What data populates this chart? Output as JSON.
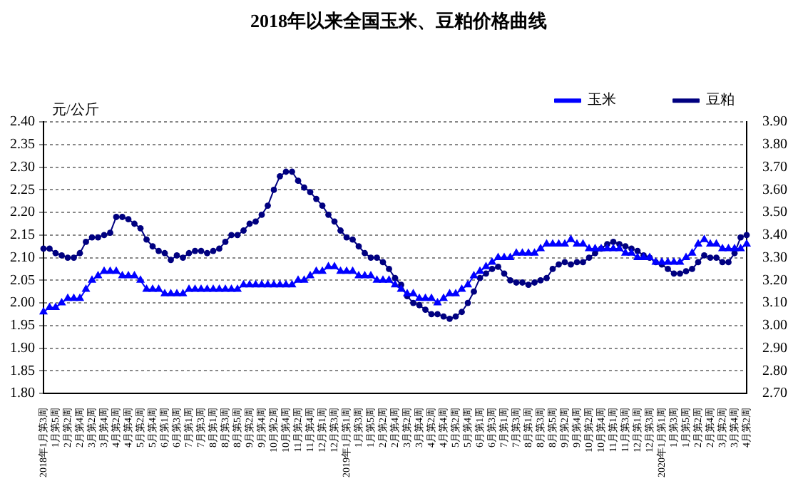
{
  "chart_data": {
    "type": "line",
    "title": "2018年以来全国玉米、豆粕价格曲线",
    "ylabel": "元/公斤",
    "categories": [
      "2018年1月第3周",
      null,
      "1月第5周",
      null,
      "2月第2周",
      null,
      "2月第4周",
      null,
      "3月第2周",
      null,
      "3月第4周",
      null,
      "4月第2周",
      null,
      "4月第4周",
      null,
      "5月第2周",
      null,
      "5月第4周",
      null,
      "6月第1周",
      null,
      "6月第3周",
      null,
      "7月第1周",
      null,
      "7月第3周",
      null,
      "8月第1周",
      null,
      "8月第3周",
      null,
      "8月第5周",
      null,
      "9月第2周",
      null,
      "9月第4周",
      null,
      "10月第2周",
      null,
      "10月第4周",
      null,
      "11月第2周",
      null,
      "11月第4周",
      null,
      "12月第1周",
      null,
      "12月第3周",
      null,
      "2019年1月第1周",
      null,
      "1月第3周",
      null,
      "1月第5周",
      null,
      "2月第2周",
      null,
      "2月第4周",
      null,
      "3月第2周",
      null,
      "3月第4周",
      null,
      "4月第2周",
      null,
      "4月第4周",
      null,
      "5月第2周",
      null,
      "5月第4周",
      null,
      "6月第1周",
      null,
      "6月第3周",
      null,
      "7月第1周",
      null,
      "7月第3周",
      null,
      "8月第1周",
      null,
      "8月第3周",
      null,
      "8月第5周",
      null,
      "9月第2周",
      null,
      "9月第4周",
      null,
      "10月第2周",
      null,
      "10月第4周",
      null,
      "11月第1周",
      null,
      "11月第3周",
      null,
      "12月第1周",
      null,
      "12月第3周",
      null,
      "2020年1月第1周",
      null,
      "1月第3周",
      null,
      "1月第5周",
      null,
      "2月第2周",
      null,
      "2月第4周",
      null,
      "3月第2周",
      null,
      "3月第4周",
      null,
      "4月第2周"
    ],
    "series": [
      {
        "name": "玉米",
        "color": "#0000ff",
        "marker": "triangle",
        "values": [
          1.98,
          1.99,
          1.99,
          2.0,
          2.01,
          2.01,
          2.01,
          2.03,
          2.05,
          2.06,
          2.07,
          2.07,
          2.07,
          2.06,
          2.06,
          2.06,
          2.05,
          2.03,
          2.03,
          2.03,
          2.02,
          2.02,
          2.02,
          2.02,
          2.03,
          2.03,
          2.03,
          2.03,
          2.03,
          2.03,
          2.03,
          2.03,
          2.03,
          2.04,
          2.04,
          2.04,
          2.04,
          2.04,
          2.04,
          2.04,
          2.04,
          2.04,
          2.05,
          2.05,
          2.06,
          2.07,
          2.07,
          2.08,
          2.08,
          2.07,
          2.07,
          2.07,
          2.06,
          2.06,
          2.06,
          2.05,
          2.05,
          2.05,
          2.04,
          2.03,
          2.02,
          2.02,
          2.01,
          2.01,
          2.01,
          2.0,
          2.01,
          2.02,
          2.02,
          2.03,
          2.04,
          2.06,
          2.07,
          2.08,
          2.09,
          2.1,
          2.1,
          2.1,
          2.11,
          2.11,
          2.11,
          2.11,
          2.12,
          2.13,
          2.13,
          2.13,
          2.13,
          2.14,
          2.13,
          2.13,
          2.12,
          2.12,
          2.12,
          2.12,
          2.12,
          2.12,
          2.11,
          2.11,
          2.1,
          2.1,
          2.1,
          2.09,
          2.09,
          2.09,
          2.09,
          2.09,
          2.1,
          2.11,
          2.13,
          2.14,
          2.13,
          2.13,
          2.12,
          2.12,
          2.12,
          2.12,
          2.13
        ]
      },
      {
        "name": "豆粕",
        "color": "#000080",
        "marker": "circle",
        "axis": "y2",
        "values": [
          3.34,
          3.34,
          3.32,
          3.31,
          3.3,
          3.3,
          3.32,
          3.37,
          3.39,
          3.39,
          3.4,
          3.41,
          3.48,
          3.48,
          3.47,
          3.45,
          3.43,
          3.38,
          3.35,
          3.33,
          3.32,
          3.29,
          3.31,
          3.3,
          3.32,
          3.33,
          3.33,
          3.32,
          3.33,
          3.34,
          3.37,
          3.4,
          3.4,
          3.42,
          3.45,
          3.46,
          3.49,
          3.53,
          3.6,
          3.66,
          3.68,
          3.68,
          3.64,
          3.61,
          3.59,
          3.56,
          3.53,
          3.49,
          3.46,
          3.42,
          3.39,
          3.38,
          3.35,
          3.32,
          3.3,
          3.3,
          3.28,
          3.25,
          3.21,
          3.18,
          3.13,
          3.1,
          3.09,
          3.07,
          3.05,
          3.05,
          3.04,
          3.03,
          3.04,
          3.06,
          3.1,
          3.15,
          3.21,
          3.23,
          3.25,
          3.26,
          3.23,
          3.2,
          3.19,
          3.19,
          3.18,
          3.19,
          3.2,
          3.21,
          3.25,
          3.27,
          3.28,
          3.27,
          3.28,
          3.28,
          3.3,
          3.32,
          3.34,
          3.36,
          3.37,
          3.36,
          3.35,
          3.34,
          3.33,
          3.31,
          3.3,
          3.28,
          3.27,
          3.25,
          3.23,
          3.23,
          3.24,
          3.25,
          3.28,
          3.31,
          3.3,
          3.3,
          3.28,
          3.28,
          3.32,
          3.39,
          3.4
        ]
      }
    ],
    "ylim": [
      1.8,
      2.4
    ],
    "yticks": [
      {
        "value": 1.8,
        "label": "1.80"
      },
      {
        "value": 1.85,
        "label": "1.85"
      },
      {
        "value": 1.9,
        "label": "1.90"
      },
      {
        "value": 1.95,
        "label": "1.95"
      },
      {
        "value": 2.0,
        "label": "2.00"
      },
      {
        "value": 2.05,
        "label": "2.05"
      },
      {
        "value": 2.1,
        "label": "2.10"
      },
      {
        "value": 2.15,
        "label": "2.15"
      },
      {
        "value": 2.2,
        "label": "2.20"
      },
      {
        "value": 2.25,
        "label": "2.25"
      },
      {
        "value": 2.3,
        "label": "2.30"
      },
      {
        "value": 2.35,
        "label": "2.35"
      },
      {
        "value": 2.4,
        "label": "2.40"
      }
    ],
    "y2lim": [
      2.7,
      3.9
    ],
    "y2ticks": [
      {
        "value": 2.7,
        "label": "2.70"
      },
      {
        "value": 2.8,
        "label": "2.80"
      },
      {
        "value": 2.9,
        "label": "2.90"
      },
      {
        "value": 3.0,
        "label": "3.00"
      },
      {
        "value": 3.1,
        "label": "3.10"
      },
      {
        "value": 3.2,
        "label": "3.20"
      },
      {
        "value": 3.3,
        "label": "3.30"
      },
      {
        "value": 3.4,
        "label": "3.40"
      },
      {
        "value": 3.5,
        "label": "3.50"
      },
      {
        "value": 3.6,
        "label": "3.60"
      },
      {
        "value": 3.7,
        "label": "3.70"
      },
      {
        "value": 3.8,
        "label": "3.80"
      },
      {
        "value": 3.9,
        "label": "3.90"
      }
    ],
    "grid": "y",
    "legend": "top"
  }
}
